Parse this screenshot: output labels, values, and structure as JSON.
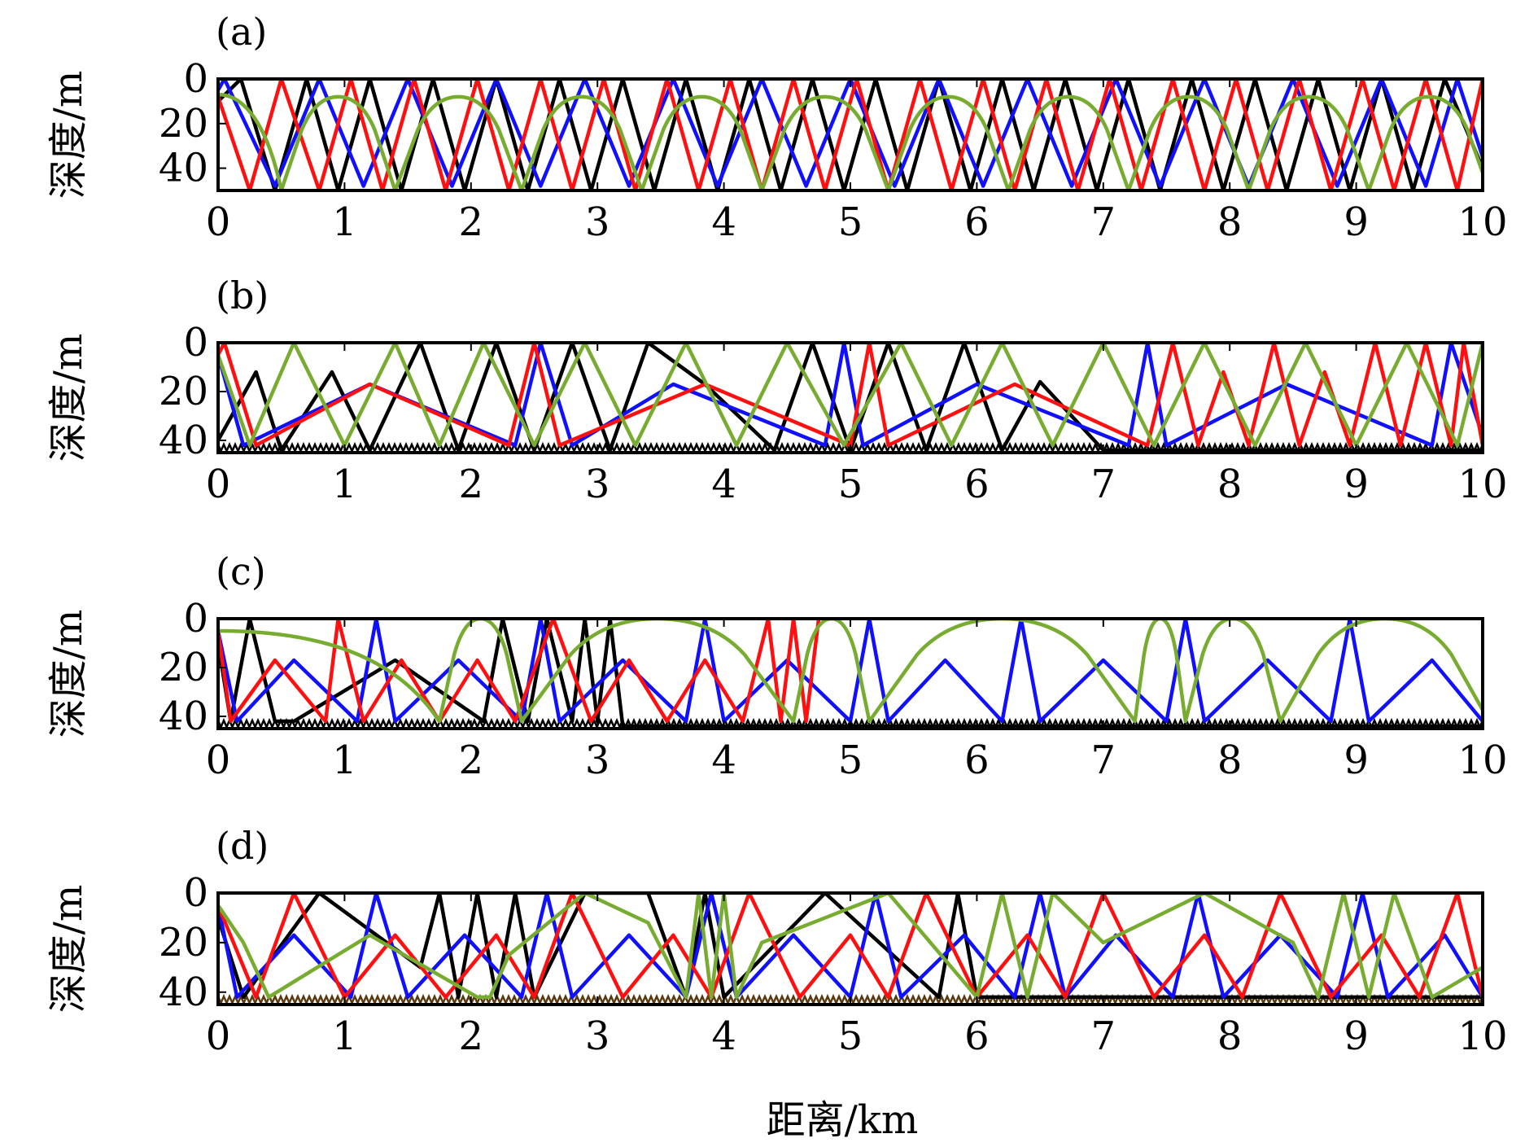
{
  "figure": {
    "xlabel": "距离/km",
    "colors": {
      "black": "#000000",
      "blue": "#1010ff",
      "red": "#ff1010",
      "green": "#77ac30",
      "frame": "#000000"
    }
  },
  "chart_data": [
    {
      "type": "line",
      "panel_label": "(a)",
      "ylabel": "深度/m",
      "xlim": [
        0,
        10
      ],
      "ylim": [
        0,
        50
      ],
      "y_inverted": true,
      "xticks": [
        0,
        1,
        2,
        3,
        4,
        5,
        6,
        7,
        8,
        9,
        10
      ],
      "yticks": [
        0,
        20,
        40
      ],
      "series": [
        {
          "color": "#000000",
          "kind": "zigzag",
          "x": [
            0,
            0.18,
            0.45,
            0.7,
            0.95,
            1.2,
            1.45,
            1.7,
            1.95,
            2.2,
            2.45,
            2.7,
            2.95,
            3.2,
            3.45,
            3.7,
            3.95,
            4.2,
            4.45,
            4.7,
            4.95,
            5.2,
            5.45,
            5.7,
            5.95,
            6.2,
            6.45,
            6.7,
            6.95,
            7.2,
            7.45,
            7.7,
            7.95,
            8.2,
            8.45,
            8.7,
            8.95,
            9.2,
            9.45,
            9.7,
            10
          ],
          "y": [
            10,
            0,
            50,
            0,
            50,
            0,
            50,
            0,
            50,
            0,
            50,
            0,
            50,
            0,
            50,
            0,
            50,
            0,
            50,
            0,
            50,
            0,
            50,
            0,
            50,
            0,
            50,
            0,
            50,
            0,
            50,
            0,
            50,
            0,
            50,
            0,
            50,
            0,
            50,
            0,
            40
          ]
        },
        {
          "color": "#1010ff",
          "kind": "zigzag",
          "x": [
            0,
            0.05,
            0.45,
            0.8,
            1.15,
            1.5,
            1.85,
            2.2,
            2.55,
            2.9,
            3.25,
            3.6,
            3.95,
            4.3,
            4.65,
            5.0,
            5.35,
            5.7,
            6.05,
            6.4,
            6.75,
            7.1,
            7.45,
            7.8,
            8.15,
            8.5,
            8.85,
            9.2,
            9.55,
            9.8,
            10
          ],
          "y": [
            5,
            0,
            48,
            0,
            48,
            0,
            48,
            0,
            48,
            0,
            48,
            0,
            48,
            0,
            48,
            0,
            48,
            0,
            48,
            0,
            48,
            0,
            48,
            0,
            48,
            0,
            48,
            0,
            48,
            0,
            35
          ]
        },
        {
          "color": "#ff1010",
          "kind": "zigzag",
          "x": [
            0,
            0.25,
            0.5,
            0.8,
            1.05,
            1.3,
            1.55,
            1.8,
            2.05,
            2.3,
            2.55,
            2.8,
            3.05,
            3.3,
            3.55,
            3.8,
            4.05,
            4.3,
            4.55,
            4.8,
            5.05,
            5.3,
            5.55,
            5.8,
            6.05,
            6.3,
            6.55,
            6.8,
            7.05,
            7.3,
            7.55,
            7.8,
            8.05,
            8.3,
            8.55,
            8.8,
            9.05,
            9.3,
            9.55,
            9.8,
            10
          ],
          "y": [
            8,
            50,
            0,
            50,
            0,
            50,
            0,
            50,
            0,
            50,
            0,
            50,
            0,
            50,
            0,
            50,
            0,
            50,
            0,
            50,
            0,
            50,
            0,
            50,
            0,
            50,
            0,
            50,
            0,
            50,
            0,
            50,
            0,
            50,
            0,
            50,
            0,
            50,
            0,
            50,
            0
          ]
        },
        {
          "color": "#77ac30",
          "kind": "arches",
          "y_top": 8,
          "y_bottom": 50,
          "bottoms": [
            0.5,
            1.4,
            2.4,
            3.35,
            4.3,
            5.3,
            6.25,
            7.2,
            8.15,
            9.1,
            10.05
          ],
          "start_y": 7
        }
      ]
    },
    {
      "type": "line",
      "panel_label": "(b)",
      "ylabel": "深度/m",
      "xlim": [
        0,
        10
      ],
      "ylim": [
        0,
        45
      ],
      "y_inverted": true,
      "xticks": [
        0,
        1,
        2,
        3,
        4,
        5,
        6,
        7,
        8,
        9,
        10
      ],
      "yticks": [
        0,
        20,
        40
      ],
      "series": [
        {
          "color": "#000000",
          "kind": "zigzag",
          "x": [
            0,
            0.3,
            0.5,
            0.9,
            1.2,
            1.6,
            1.9,
            2.2,
            2.5,
            2.8,
            3.1,
            3.4,
            3.85,
            4.4,
            4.7,
            5.0,
            5.3,
            5.6,
            5.9,
            6.2,
            6.5,
            7.0,
            7.4,
            10
          ],
          "y": [
            40,
            12,
            44,
            12,
            44,
            0,
            44,
            0,
            44,
            0,
            44,
            0,
            17,
            44,
            0,
            44,
            0,
            44,
            0,
            44,
            16,
            44,
            44,
            44
          ]
        },
        {
          "color": "#1010ff",
          "kind": "zigzag",
          "x": [
            0,
            0.2,
            1.2,
            2.35,
            2.55,
            2.8,
            3.6,
            4.8,
            4.95,
            5.1,
            6.0,
            7.2,
            7.35,
            7.5,
            8.45,
            9.6,
            9.75,
            10
          ],
          "y": [
            5,
            42,
            17,
            42,
            0,
            42,
            17,
            42,
            0,
            42,
            17,
            42,
            0,
            42,
            17,
            42,
            0,
            38
          ]
        },
        {
          "color": "#ff1010",
          "kind": "zigzag",
          "x": [
            0,
            0.05,
            0.3,
            1.2,
            2.3,
            2.5,
            2.7,
            3.85,
            5.0,
            5.15,
            5.3,
            6.3,
            7.35,
            7.55,
            7.75,
            7.95,
            8.15,
            8.35,
            8.55,
            8.75,
            8.95,
            9.15,
            9.35,
            9.55,
            9.75,
            9.85,
            10
          ],
          "y": [
            5,
            0,
            42,
            17,
            42,
            0,
            42,
            17,
            42,
            0,
            42,
            17,
            42,
            0,
            42,
            12,
            42,
            0,
            42,
            12,
            42,
            0,
            42,
            0,
            42,
            0,
            42
          ]
        },
        {
          "color": "#77ac30",
          "kind": "zigzag",
          "x": [
            0,
            0.25,
            0.6,
            1.0,
            1.4,
            1.75,
            2.1,
            2.5,
            2.9,
            3.3,
            3.7,
            4.1,
            4.5,
            4.95,
            5.4,
            5.8,
            6.2,
            6.6,
            7.0,
            7.4,
            7.8,
            8.2,
            8.6,
            9.0,
            9.4,
            9.8,
            10
          ],
          "y": [
            5,
            42,
            0,
            42,
            0,
            42,
            0,
            42,
            0,
            42,
            0,
            42,
            0,
            42,
            0,
            42,
            0,
            42,
            0,
            42,
            0,
            42,
            0,
            42,
            0,
            42,
            0
          ]
        }
      ]
    },
    {
      "type": "line",
      "panel_label": "(c)",
      "ylabel": "深度/m",
      "xlim": [
        0,
        10
      ],
      "ylim": [
        0,
        45
      ],
      "y_inverted": true,
      "xticks": [
        0,
        1,
        2,
        3,
        4,
        5,
        6,
        7,
        8,
        9,
        10
      ],
      "yticks": [
        0,
        20,
        40
      ],
      "series": [
        {
          "color": "#000000",
          "kind": "zigzag",
          "x": [
            0,
            0.1,
            0.25,
            0.45,
            0.6,
            1.4,
            2.1,
            2.25,
            2.45,
            2.6,
            2.8,
            2.9,
            3.0,
            3.1,
            3.2,
            10
          ],
          "y": [
            10,
            42,
            0,
            42,
            42,
            17,
            42,
            0,
            42,
            0,
            42,
            0,
            42,
            0,
            44,
            44
          ]
        },
        {
          "color": "#1010ff",
          "kind": "zigzag",
          "x": [
            0,
            0.15,
            0.6,
            1.1,
            1.25,
            1.4,
            1.9,
            2.4,
            2.55,
            2.7,
            3.2,
            3.7,
            3.85,
            4.0,
            4.5,
            5.0,
            5.15,
            5.3,
            5.75,
            6.2,
            6.35,
            6.5,
            7.0,
            7.5,
            7.65,
            7.8,
            8.3,
            8.8,
            8.95,
            9.1,
            9.6,
            10
          ],
          "y": [
            5,
            42,
            17,
            42,
            0,
            42,
            17,
            42,
            0,
            42,
            17,
            42,
            0,
            42,
            17,
            42,
            0,
            42,
            17,
            42,
            0,
            42,
            17,
            42,
            0,
            42,
            17,
            42,
            0,
            42,
            17,
            42
          ]
        },
        {
          "color": "#ff1010",
          "kind": "zigzag",
          "x": [
            0,
            0.1,
            0.45,
            0.85,
            0.95,
            1.15,
            1.45,
            1.75,
            2.05,
            2.35,
            2.65,
            2.95,
            3.25,
            3.55,
            3.85,
            4.15,
            4.35,
            4.45,
            4.55,
            4.65,
            4.75
          ],
          "y": [
            5,
            42,
            17,
            42,
            0,
            42,
            17,
            42,
            17,
            42,
            0,
            42,
            17,
            42,
            17,
            42,
            0,
            42,
            0,
            42,
            0
          ]
        },
        {
          "color": "#77ac30",
          "kind": "arches",
          "y_top": 0,
          "y_bottom": 42,
          "bottoms": [
            1.75,
            2.4,
            4.55,
            5.15,
            7.25,
            7.65,
            8.4,
            10.05
          ],
          "start_y": 5
        }
      ]
    },
    {
      "type": "line",
      "panel_label": "(d)",
      "ylabel": "深度/m",
      "xlim": [
        0,
        10
      ],
      "ylim": [
        0,
        45
      ],
      "y_inverted": true,
      "xticks": [
        0,
        1,
        2,
        3,
        4,
        5,
        6,
        7,
        8,
        9,
        10
      ],
      "yticks": [
        0,
        20,
        40
      ],
      "series": [
        {
          "color": "#000000",
          "kind": "zigzag",
          "x": [
            0,
            0.2,
            0.8,
            1.6,
            1.75,
            1.9,
            2.05,
            2.2,
            2.35,
            2.5,
            2.9,
            3.4,
            3.7,
            3.85,
            4.0,
            4.8,
            5.7,
            5.85,
            6.0,
            10
          ],
          "y": [
            10,
            42,
            0,
            30,
            0,
            42,
            0,
            42,
            0,
            42,
            0,
            0,
            42,
            0,
            42,
            0,
            42,
            0,
            42,
            42
          ]
        },
        {
          "color": "#1010ff",
          "kind": "zigzag",
          "x": [
            0,
            0.15,
            0.6,
            1.05,
            1.25,
            1.5,
            1.95,
            2.4,
            2.6,
            2.8,
            3.25,
            3.7,
            3.9,
            4.1,
            4.55,
            5.0,
            5.2,
            5.4,
            5.9,
            6.3,
            6.5,
            6.7,
            7.1,
            7.55,
            7.75,
            7.95,
            8.4,
            8.85,
            9.05,
            9.25,
            9.7,
            10
          ],
          "y": [
            5,
            42,
            17,
            42,
            0,
            42,
            17,
            42,
            0,
            42,
            17,
            42,
            0,
            42,
            17,
            42,
            0,
            42,
            17,
            42,
            0,
            42,
            17,
            42,
            0,
            42,
            17,
            42,
            0,
            42,
            17,
            42
          ]
        },
        {
          "color": "#ff1010",
          "kind": "zigzag",
          "x": [
            0,
            0.3,
            0.6,
            1.0,
            1.4,
            1.8,
            2.2,
            2.5,
            2.8,
            3.2,
            3.6,
            3.9,
            4.2,
            4.6,
            5.0,
            5.3,
            5.6,
            6.0,
            6.4,
            6.7,
            7.0,
            7.4,
            7.8,
            8.1,
            8.4,
            8.8,
            9.2,
            9.5,
            9.8,
            10
          ],
          "y": [
            5,
            42,
            0,
            42,
            17,
            42,
            17,
            42,
            0,
            42,
            17,
            42,
            0,
            42,
            17,
            42,
            0,
            42,
            17,
            42,
            0,
            42,
            17,
            42,
            0,
            42,
            17,
            42,
            0,
            42
          ]
        },
        {
          "color": "#77ac30",
          "kind": "zigzag",
          "x": [
            0,
            0.2,
            0.4,
            1.2,
            2.05,
            2.15,
            2.3,
            2.9,
            3.4,
            3.7,
            3.8,
            3.9,
            4.0,
            4.1,
            4.3,
            5.3,
            6.0,
            6.2,
            6.4,
            6.6,
            7.0,
            7.8,
            8.5,
            8.7,
            8.9,
            9.1,
            9.3,
            9.6,
            10
          ],
          "y": [
            5,
            20,
            42,
            17,
            42,
            42,
            25,
            0,
            12,
            42,
            0,
            42,
            0,
            42,
            20,
            0,
            42,
            0,
            42,
            0,
            20,
            0,
            20,
            42,
            0,
            42,
            0,
            42,
            30
          ]
        }
      ]
    }
  ]
}
